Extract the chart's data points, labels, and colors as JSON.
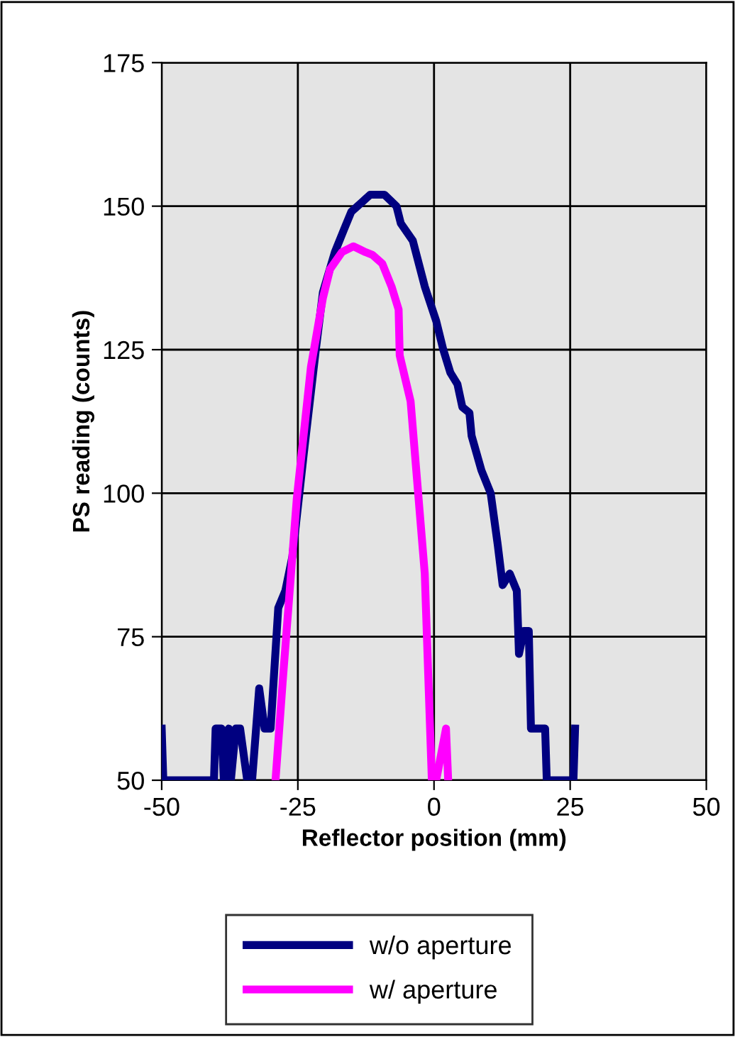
{
  "chart_data": {
    "type": "line",
    "xlabel": "Reflector position (mm)",
    "ylabel": "PS reading (counts)",
    "xlim": [
      -50,
      50
    ],
    "xticks": [
      -50,
      -25,
      0,
      25,
      50
    ],
    "ylim": [
      50,
      175
    ],
    "yticks": [
      50,
      75,
      100,
      125,
      150,
      175
    ],
    "grid": true,
    "legend": "bottom",
    "marker": "none",
    "line_style": "solid",
    "series": [
      {
        "name": "w/o aperture",
        "color": "#000080",
        "x": [
          -50,
          -49.7,
          -40.4,
          -40.1,
          -39,
          -38.6,
          -37.7,
          -37.3,
          -36.4,
          -35.6,
          -34.3,
          -33.4,
          -32.1,
          -31.1,
          -30,
          -28.6,
          -27.3,
          -26,
          -23.9,
          -21.7,
          -20.4,
          -18.2,
          -16.5,
          -15.2,
          -11.7,
          -9.1,
          -6.9,
          -6.1,
          -3.9,
          -1.7,
          0.4,
          1.7,
          3,
          4.3,
          5.2,
          6.5,
          6.9,
          8.7,
          10.4,
          11.7,
          12.6,
          13.9,
          15.2,
          15.6,
          16.5,
          17.4,
          17.8,
          20.4,
          20.7,
          25.6,
          25.9
        ],
        "values": [
          59,
          50,
          50,
          59,
          59,
          50,
          59,
          50,
          59,
          59,
          50,
          50,
          66,
          59,
          59,
          80,
          83,
          89,
          107,
          125,
          135,
          142,
          146,
          149,
          152,
          152,
          150,
          147,
          144,
          136,
          130,
          125,
          121,
          119,
          115,
          114,
          110,
          104,
          100,
          91,
          84,
          86,
          83,
          72,
          76,
          76,
          59,
          59,
          50,
          50,
          59
        ]
      },
      {
        "name": "w/ aperture",
        "color": "#ff00ff",
        "x": [
          -29.1,
          -27.8,
          -25.2,
          -22.6,
          -20.4,
          -19.1,
          -16.9,
          -14.8,
          -12.6,
          -11.3,
          -9.5,
          -7.8,
          -6.5,
          -6.3,
          -4.3,
          -1.7,
          -0.4,
          0.4,
          2.2,
          2.6
        ],
        "values": [
          50,
          67,
          99,
          122,
          134,
          139,
          142,
          143,
          142,
          141.5,
          140,
          136,
          132,
          124,
          116,
          86,
          50,
          50,
          59,
          50
        ]
      }
    ]
  }
}
